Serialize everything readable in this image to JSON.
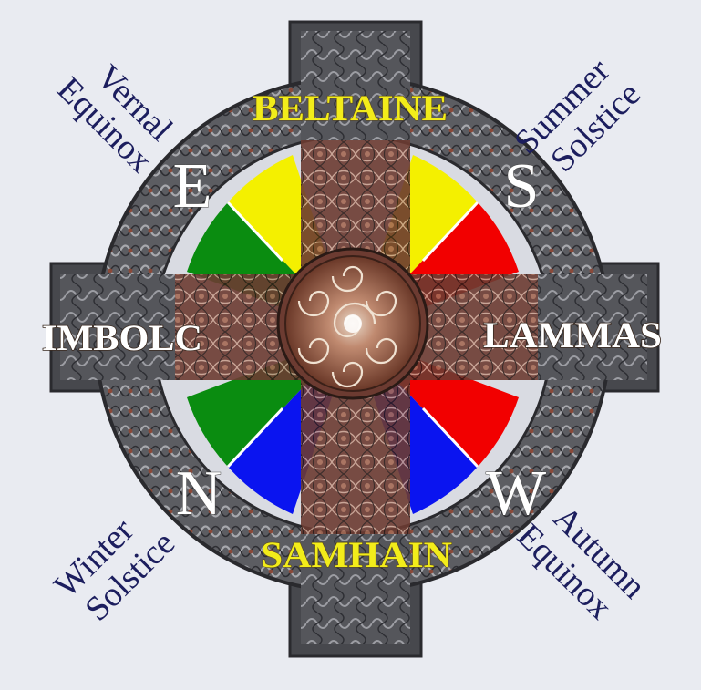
{
  "festivals": {
    "top": "BELTAINE",
    "bottom": "SAMHAIN",
    "left": "IMBOLC",
    "right": "LAMMAS"
  },
  "directions": {
    "top_left": "E",
    "top_right": "S",
    "bottom_left": "N",
    "bottom_right": "W"
  },
  "events": {
    "top_left": {
      "line1": "Vernal",
      "line2": "Equinox"
    },
    "top_right": {
      "line1": "Summer",
      "line2": "Solstice"
    },
    "bottom_left": {
      "line1": "Winter",
      "line2": "Solstice"
    },
    "bottom_right": {
      "line1": "Autumn",
      "line2": "Equinox"
    }
  },
  "colors": {
    "yellow": "#f4f000",
    "red": "#f20000",
    "green": "#0a8c10",
    "blue": "#0a14f0",
    "ring": "#5a5a5e",
    "cross": "#6b3a30",
    "background": "#e9ebf1"
  },
  "icons": [
    "celtic-cross-icon",
    "triskele-spiral-icon"
  ]
}
